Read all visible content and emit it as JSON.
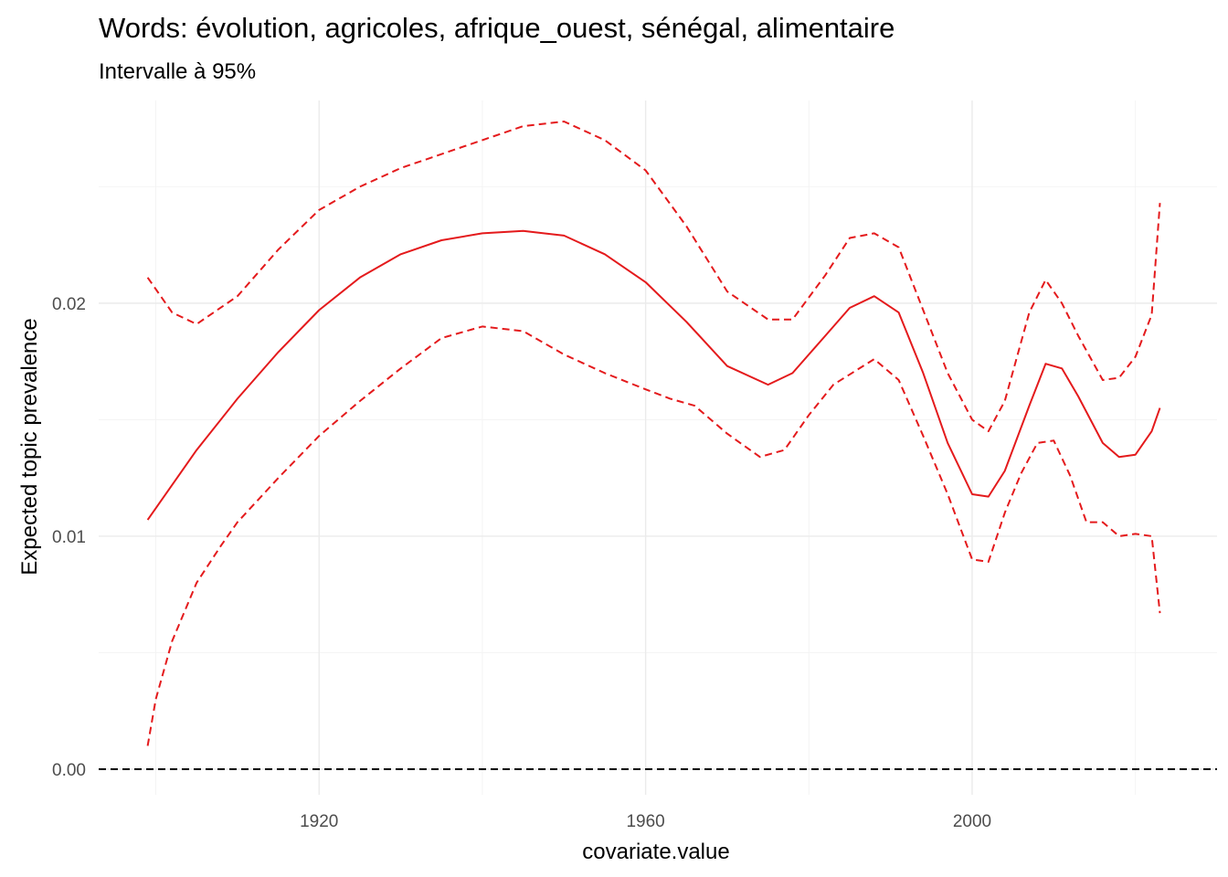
{
  "chart_data": {
    "type": "line",
    "title": "Words: évolution, agricoles, afrique_ouest, sénégal, alimentaire",
    "subtitle": "Intervalle à 95%",
    "xlabel": "covariate.value",
    "ylabel": "Expected topic prevalence",
    "xlim": [
      1893,
      2030
    ],
    "ylim": [
      -0.0011,
      0.0287
    ],
    "x_ticks": [
      1920,
      1960,
      2000
    ],
    "x_tick_labels": [
      "1920",
      "1960",
      "2000"
    ],
    "y_ticks": [
      0.0,
      0.01,
      0.02
    ],
    "y_tick_labels": [
      "0.00",
      "0.01",
      "0.02"
    ],
    "grid": true,
    "reference_line": {
      "y": 0,
      "style": "dashed",
      "color": "#000000"
    },
    "colors": {
      "series": "#e41a1c",
      "reference": "#000000",
      "grid": "#ebebeb"
    },
    "series": [
      {
        "role": "estimate",
        "style": "solid",
        "x": [
          1899,
          1902,
          1905,
          1910,
          1915,
          1920,
          1925,
          1930,
          1935,
          1940,
          1945,
          1950,
          1955,
          1960,
          1965,
          1970,
          1975,
          1978,
          1982,
          1985,
          1988,
          1991,
          1994,
          1997,
          2000,
          2002,
          2004,
          2007,
          2009,
          2011,
          2013,
          2016,
          2018,
          2020,
          2022,
          2023
        ],
        "y": [
          0.0107,
          0.0122,
          0.0137,
          0.0159,
          0.0179,
          0.0197,
          0.0211,
          0.0221,
          0.0227,
          0.023,
          0.0231,
          0.0229,
          0.0221,
          0.0209,
          0.0192,
          0.0173,
          0.0165,
          0.017,
          0.0186,
          0.0198,
          0.0203,
          0.0196,
          0.017,
          0.014,
          0.0118,
          0.0117,
          0.0128,
          0.0156,
          0.0174,
          0.0172,
          0.016,
          0.014,
          0.0134,
          0.0135,
          0.0145,
          0.0155
        ]
      },
      {
        "role": "upper-95",
        "style": "dashed",
        "x": [
          1899,
          1902,
          1905,
          1910,
          1915,
          1920,
          1925,
          1930,
          1935,
          1940,
          1945,
          1950,
          1955,
          1960,
          1965,
          1970,
          1975,
          1978,
          1982,
          1985,
          1988,
          1991,
          1994,
          1997,
          2000,
          2002,
          2004,
          2007,
          2009,
          2011,
          2013,
          2016,
          2018,
          2020,
          2022,
          2023
        ],
        "y": [
          0.0211,
          0.0196,
          0.0191,
          0.0203,
          0.0223,
          0.024,
          0.025,
          0.0258,
          0.0264,
          0.027,
          0.0276,
          0.0278,
          0.027,
          0.0257,
          0.0233,
          0.0205,
          0.0193,
          0.0193,
          0.0212,
          0.0228,
          0.023,
          0.0224,
          0.0197,
          0.017,
          0.015,
          0.0145,
          0.0158,
          0.0196,
          0.021,
          0.02,
          0.0186,
          0.0167,
          0.0168,
          0.0177,
          0.0195,
          0.0243
        ]
      },
      {
        "role": "lower-95",
        "style": "dashed",
        "x": [
          1899,
          1900,
          1902,
          1905,
          1908,
          1910,
          1915,
          1920,
          1925,
          1930,
          1935,
          1940,
          1945,
          1950,
          1955,
          1960,
          1963,
          1966,
          1970,
          1974,
          1977,
          1980,
          1983,
          1988,
          1991,
          1994,
          1997,
          2000,
          2002,
          2004,
          2006,
          2008,
          2010,
          2012,
          2014,
          2016,
          2018,
          2020,
          2022,
          2023
        ],
        "y": [
          0.001,
          0.003,
          0.0055,
          0.008,
          0.0096,
          0.0106,
          0.0125,
          0.0143,
          0.0158,
          0.0172,
          0.0185,
          0.019,
          0.0188,
          0.0178,
          0.017,
          0.0163,
          0.0159,
          0.0156,
          0.0144,
          0.0134,
          0.0137,
          0.0152,
          0.0165,
          0.0176,
          0.0167,
          0.0143,
          0.0118,
          0.009,
          0.0089,
          0.011,
          0.0127,
          0.014,
          0.0141,
          0.0126,
          0.0106,
          0.0106,
          0.01,
          0.0101,
          0.01,
          0.0067
        ]
      }
    ]
  }
}
